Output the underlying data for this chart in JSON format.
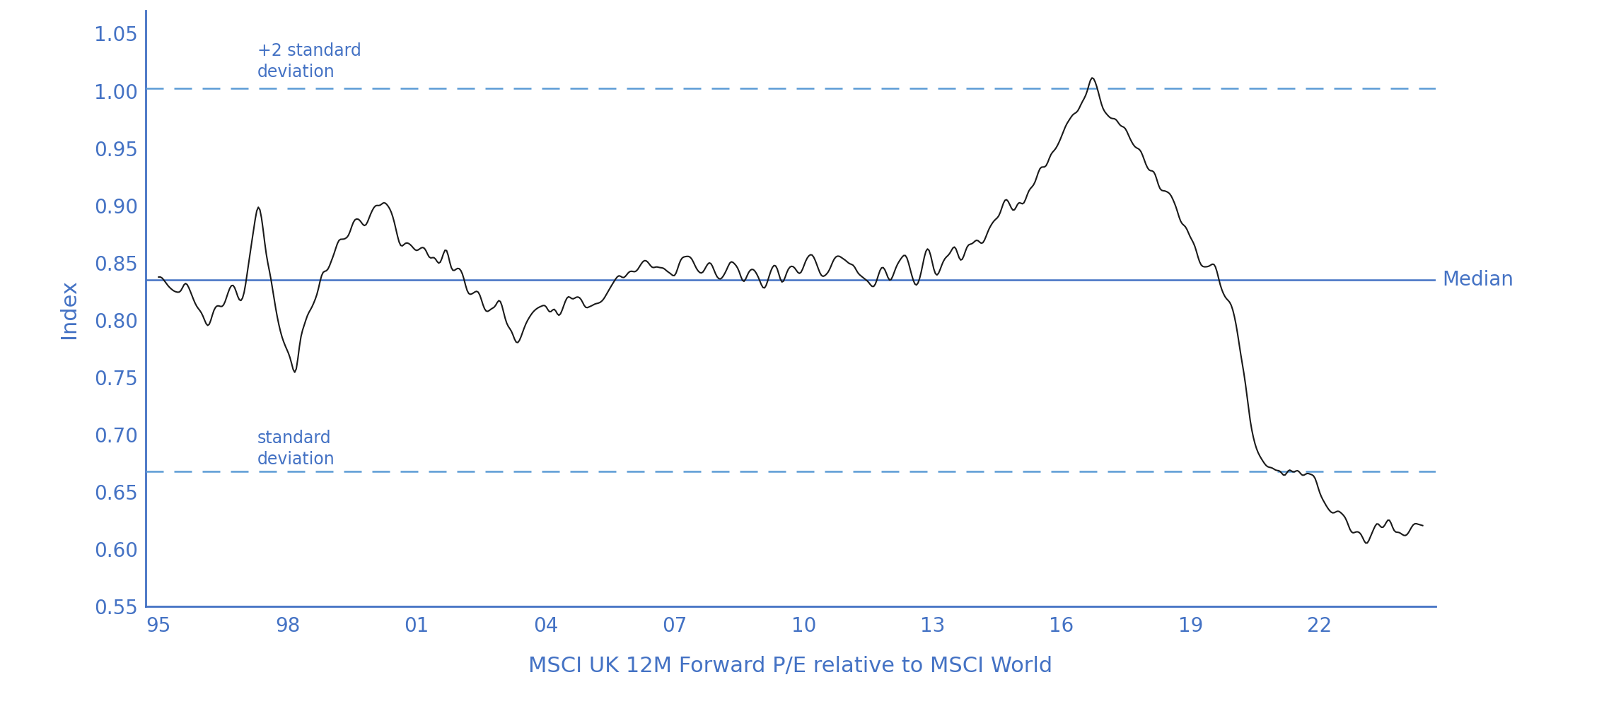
{
  "ylabel": "Index",
  "xlabel": "MSCI UK 12M Forward P/E relative to MSCI World",
  "ylim": [
    0.55,
    1.07
  ],
  "yticks": [
    0.55,
    0.6,
    0.65,
    0.7,
    0.75,
    0.8,
    0.85,
    0.9,
    0.95,
    1.0,
    1.05
  ],
  "xtick_labels": [
    "95",
    "98",
    "01",
    "04",
    "07",
    "10",
    "13",
    "16",
    "19",
    "22"
  ],
  "xtick_positions": [
    1995,
    1998,
    2001,
    2004,
    2007,
    2010,
    2013,
    2016,
    2019,
    2022
  ],
  "median_value": 0.835,
  "upper_sd_value": 1.002,
  "lower_sd_value": 0.668,
  "line_color": "#1a1a1a",
  "reference_line_color": "#4472C4",
  "dashed_line_color": "#5B9BD5",
  "annotation_color": "#4472C4",
  "background_color": "#ffffff",
  "spine_color": "#4472C4",
  "axis_label_color": "#4472C4",
  "tick_label_color": "#4472C4",
  "upper_sd_label": "+2 standard\ndeviation",
  "lower_sd_label": "standard\ndeviation",
  "median_label": "Median",
  "xlim_left": 1994.7,
  "xlim_right": 2024.7
}
